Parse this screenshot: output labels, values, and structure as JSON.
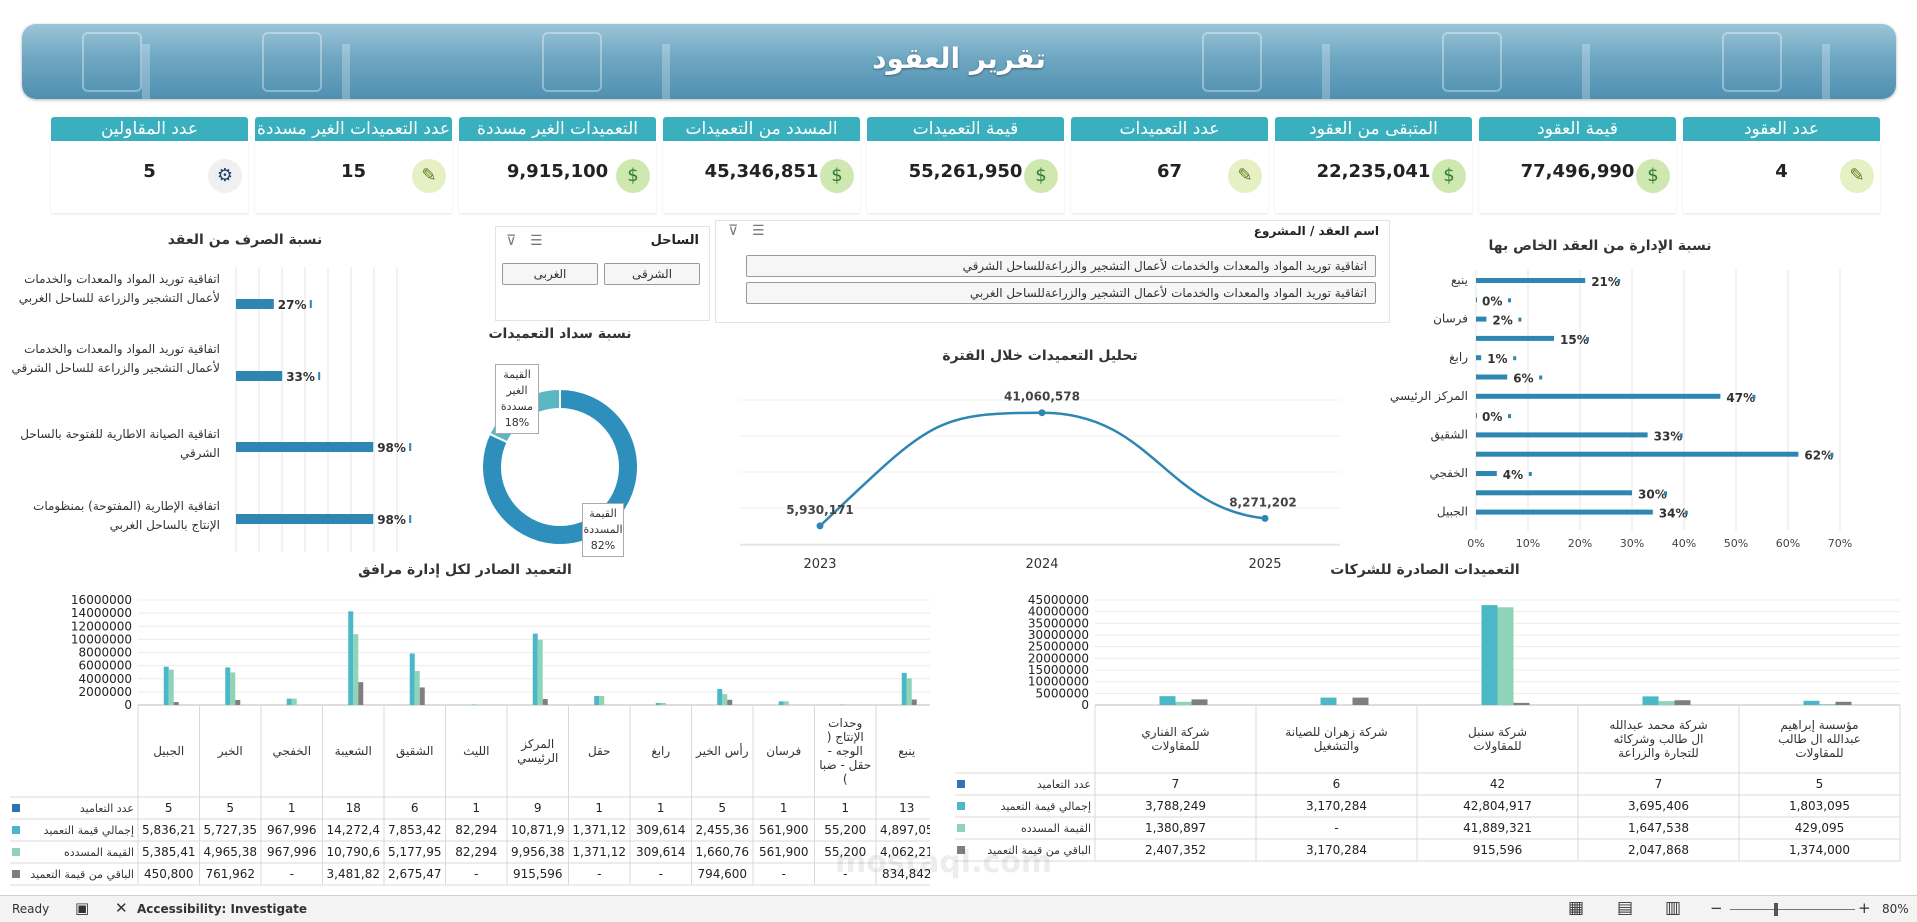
{
  "title": "تقرير العقود",
  "kpis": [
    {
      "label": "عدد العقود",
      "value": "4",
      "icon": "contract-icon"
    },
    {
      "label": "قيمة العقود",
      "value": "77,496,990",
      "icon": "money-icon"
    },
    {
      "label": "المتبقى من العقود",
      "value": "22,235,041",
      "icon": "money-icon"
    },
    {
      "label": "عدد التعميدات",
      "value": "67",
      "icon": "contract-icon"
    },
    {
      "label": "قيمة التعميدات",
      "value": "55,261,950",
      "icon": "money-icon"
    },
    {
      "label": "المسدد من التعميدات",
      "value": "45,346,851",
      "icon": "money-icon"
    },
    {
      "label": "التعميدات الغير مسددة",
      "value": "9,915,100",
      "icon": "money-icon"
    },
    {
      "label": "عدد التعميدات الغير مسددة",
      "value": "15",
      "icon": "contract-icon"
    },
    {
      "label": "عدد المقاولين",
      "value": "5",
      "icon": "worker-icon"
    }
  ],
  "admin_ratio": {
    "title": "نسبة الإدارة من العقد الخاص بها",
    "rows": [
      {
        "label": "ينبع",
        "pct": "21%",
        "v": 21
      },
      {
        "label": "",
        "pct": "0%",
        "v": 0
      },
      {
        "label": "فرسان",
        "pct": "2%",
        "v": 2
      },
      {
        "label": "",
        "pct": "15%",
        "v": 15
      },
      {
        "label": "رابغ",
        "pct": "1%",
        "v": 1
      },
      {
        "label": "",
        "pct": "6%",
        "v": 6
      },
      {
        "label": "المركز الرئيسي",
        "pct": "47%",
        "v": 47
      },
      {
        "label": "",
        "pct": "0%",
        "v": 0
      },
      {
        "label": "الشقيق",
        "pct": "33%",
        "v": 33
      },
      {
        "label": "",
        "pct": "62%",
        "v": 62
      },
      {
        "label": "الخفجي",
        "pct": "4%",
        "v": 4
      },
      {
        "label": "",
        "pct": "30%",
        "v": 30
      },
      {
        "label": "الجبيل",
        "pct": "34%",
        "v": 34
      }
    ],
    "ticks": [
      "0%",
      "10%",
      "20%",
      "30%",
      "40%",
      "50%",
      "60%",
      "70%"
    ]
  },
  "contract_slicer": {
    "title": "اسم العقد / المشروع",
    "items": [
      "اتفاقية توريد المواد والمعدات والخدمات لأعمال التشجير والزراعةللساحل الشرقي",
      "اتفاقية توريد المواد والمعدات والخدمات لأعمال التشجير والزراعةللساحل الغربي"
    ]
  },
  "coast_slicer": {
    "title": "الساحل",
    "items": [
      "الشرقى",
      "الغربى"
    ]
  },
  "spend_ratio": {
    "title": "نسبة الصرف من العقد",
    "rows": [
      {
        "label": "اتفاقية توريد المواد والمعدات والخدمات لأعمال التشجير والزراعة للساحل الغربي",
        "pct": "27%",
        "v": 27
      },
      {
        "label": "اتفاقية توريد المواد والمعدات والخدمات لأعمال التشجير والزراعة للساحل الشرقي",
        "pct": "33%",
        "v": 33
      },
      {
        "label": "اتفاقية الصيانة الاطارية للفتوحة بالساحل الشرقي",
        "pct": "98%",
        "v": 98
      },
      {
        "label": "اتفاقية  الإطارية (المفتوحة) بمنظومات الإنتاج بالساحل الغربي",
        "pct": "98%",
        "v": 98
      }
    ]
  },
  "payment_ratio": {
    "title": "نسبة سداد التعميدات",
    "unpaid_label": "القيمة الغير مسددة",
    "unpaid_pct": "18%",
    "unpaid": 18,
    "paid_label": "القيمة المسددة",
    "paid_pct": "82%",
    "paid": 82
  },
  "chart_data": [
    {
      "type": "line",
      "title": "تحليل التعميدات خلال الفترة",
      "x": [
        "2023",
        "2024",
        "2025"
      ],
      "values": [
        5930171,
        41060578,
        8271202
      ],
      "labels": [
        "5,930,171",
        "41,060,578",
        "8,271,202"
      ]
    },
    {
      "type": "bar",
      "title": "التعميد الصادر لكل إدارة مرافق",
      "categories": [
        "ينبع",
        "وحدات الإنتاج ( الوجه - حقل - ضبا )",
        "فرسان",
        "رأس الخير",
        "رابغ",
        "حقل",
        "المركز الرئيسي",
        "الليث",
        "الشقيق",
        "الشعيبة",
        "الخفجي",
        "الخبر",
        "الجبيل"
      ],
      "yticks": [
        "16000000",
        "14000000",
        "12000000",
        "10000000",
        "8000000",
        "6000000",
        "4000000",
        "2000000",
        "0"
      ],
      "ylim": [
        0,
        16000000
      ],
      "series": [
        {
          "name": "عدد التعاميد",
          "color": "#2e75b6",
          "values": [
            13,
            1,
            1,
            5,
            1,
            1,
            9,
            1,
            6,
            18,
            1,
            5,
            5
          ],
          "display": [
            "13",
            "1",
            "1",
            "5",
            "1",
            "1",
            "9",
            "1",
            "6",
            "18",
            "1",
            "5",
            "5"
          ]
        },
        {
          "name": "إجمالي قيمة التعميد",
          "color": "#4bb8c7",
          "values": [
            4897050,
            55200,
            561900,
            2455360,
            309614,
            1371120,
            10871900,
            82294,
            7853420,
            14272400,
            967996,
            5727350,
            5836210
          ],
          "display": [
            "4,897,05",
            "55,200",
            "561,900",
            "2,455,36",
            "309,614",
            "1,371,12",
            "10,871,9",
            "82,294",
            "7,853,42",
            "14,272,4",
            "967,996",
            "5,727,35",
            "5,836,21"
          ]
        },
        {
          "name": "القيمة المسدده",
          "color": "#8fd4b8",
          "values": [
            4062210,
            55200,
            561900,
            1660760,
            309614,
            1371120,
            9956380,
            82294,
            5177950,
            10790600,
            967996,
            4965380,
            5385410
          ],
          "display": [
            "4,062,21",
            "55,200",
            "561,900",
            "1,660,76",
            "309,614",
            "1,371,12",
            "9,956,38",
            "82,294",
            "5,177,95",
            "10,790,6",
            "967,996",
            "4,965,38",
            "5,385,41"
          ]
        },
        {
          "name": "الباقي من قيمة التعميد",
          "color": "#7f7f7f",
          "values": [
            834842,
            0,
            0,
            794600,
            0,
            0,
            915596,
            0,
            2675470,
            3481820,
            0,
            761962,
            450800
          ],
          "display": [
            "834,842",
            "-",
            "-",
            "794,600",
            "-",
            "-",
            "915,596",
            "-",
            "2,675,47",
            "3,481,82",
            "-",
            "761,962",
            "450,800"
          ]
        }
      ]
    },
    {
      "type": "bar",
      "title": "التعميدات الصادرة للشركات",
      "categories": [
        "مؤسسة إبراهيم عبدالله ال طالب للمقاولات",
        "شركة محمد عبدالله ال طالب وشركائه للتجارة والزراعة",
        "شركة سنبل للمقاولات",
        "شركة زهران للصيانة والتشغيل",
        "شركة الفناري للمقاولات"
      ],
      "yticks": [
        "45000000",
        "40000000",
        "35000000",
        "30000000",
        "25000000",
        "20000000",
        "15000000",
        "10000000",
        "5000000",
        "0"
      ],
      "ylim": [
        0,
        45000000
      ],
      "series": [
        {
          "name": "عدد التعاميد",
          "color": "#2e75b6",
          "values": [
            5,
            7,
            42,
            6,
            7
          ],
          "display": [
            "5",
            "7",
            "42",
            "6",
            "7"
          ]
        },
        {
          "name": "إجمالي قيمة التعميد",
          "color": "#4bb8c7",
          "values": [
            1803095,
            3695406,
            42804917,
            3170284,
            3788249
          ],
          "display": [
            "1,803,095",
            "3,695,406",
            "42,804,917",
            "3,170,284",
            "3,788,249"
          ]
        },
        {
          "name": "القيمة المسدده",
          "color": "#8fd4b8",
          "values": [
            429095,
            1647538,
            41889321,
            0,
            1380897
          ],
          "display": [
            "429,095",
            "1,647,538",
            "41,889,321",
            "-",
            "1,380,897"
          ]
        },
        {
          "name": "الباقي من قيمة التعميد",
          "color": "#7f7f7f",
          "values": [
            1374000,
            2047868,
            915596,
            3170284,
            2407352
          ],
          "display": [
            "1,374,000",
            "2,047,868",
            "915,596",
            "3,170,284",
            "2,407,352"
          ]
        }
      ]
    }
  ],
  "status": {
    "ready": "Ready",
    "accessibility": "Accessibility: Investigate",
    "zoom": "80%"
  },
  "watermark": "mostaql.com"
}
